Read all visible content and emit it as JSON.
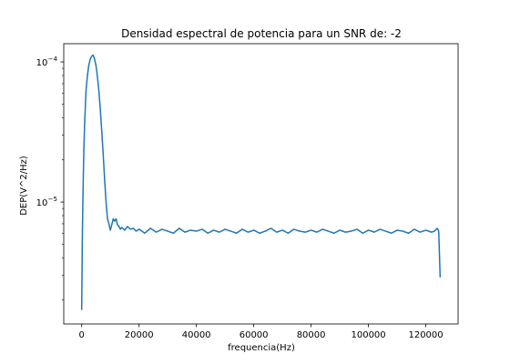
{
  "chart_data": {
    "type": "line",
    "title": "Densidad espectral de potencia para un SNR de: -2",
    "xlabel": "frequencia(Hz)",
    "ylabel": "DEP(V^2/Hz)",
    "xlim": [
      -6250,
      131250
    ],
    "ylim": [
      1.35e-06,
      0.000135
    ],
    "yscale": "log",
    "grid": false,
    "x_ticks": [
      {
        "value": 0,
        "label": "0"
      },
      {
        "value": 20000,
        "label": "20000"
      },
      {
        "value": 40000,
        "label": "40000"
      },
      {
        "value": 60000,
        "label": "60000"
      },
      {
        "value": 80000,
        "label": "80000"
      },
      {
        "value": 100000,
        "label": "100000"
      },
      {
        "value": 120000,
        "label": "120000"
      }
    ],
    "y_ticks": [
      {
        "value": 1e-05,
        "label": "10",
        "exp": "−5"
      },
      {
        "value": 0.0001,
        "label": "10",
        "exp": "−4"
      }
    ],
    "series": [
      {
        "color": "#1f77b4",
        "x": [
          0,
          250,
          500,
          750,
          1000,
          1500,
          2000,
          2500,
          3000,
          3500,
          4000,
          4500,
          5000,
          5500,
          6000,
          6500,
          7000,
          7500,
          8000,
          8500,
          9000,
          9500,
          10000,
          10500,
          11000,
          11500,
          12000,
          12500,
          13000,
          13500,
          14000,
          15000,
          16000,
          17000,
          18000,
          19000,
          20000,
          22000,
          24000,
          26000,
          28000,
          30000,
          32000,
          34000,
          36000,
          38000,
          40000,
          42000,
          44000,
          46000,
          48000,
          50000,
          52000,
          54000,
          56000,
          58000,
          60000,
          62000,
          64000,
          66000,
          68000,
          70000,
          72000,
          74000,
          76000,
          78000,
          80000,
          82000,
          84000,
          86000,
          88000,
          90000,
          92000,
          94000,
          96000,
          98000,
          100000,
          102000,
          104000,
          106000,
          108000,
          110000,
          112000,
          114000,
          116000,
          118000,
          120000,
          122000,
          123000,
          124000,
          124500,
          125000
        ],
        "y": [
          1.7e-06,
          6e-06,
          1.3e-05,
          2.3e-05,
          3.5e-05,
          6.2e-05,
          8e-05,
          9.5e-05,
          0.000105,
          0.00011,
          0.000112,
          0.000105,
          9.4e-05,
          7.8e-05,
          6.2e-05,
          4.6e-05,
          3.2e-05,
          2.2e-05,
          1.45e-05,
          1e-05,
          7.6e-06,
          7e-06,
          6.3e-06,
          6.9e-06,
          7.6e-06,
          7.3e-06,
          7.6e-06,
          6.9e-06,
          6.7e-06,
          6.4e-06,
          6.6e-06,
          6.3e-06,
          6.7e-06,
          6.4e-06,
          6.5e-06,
          6.2e-06,
          6.4e-06,
          6e-06,
          6.5e-06,
          6.1e-06,
          6.4e-06,
          6.2e-06,
          6e-06,
          6.5e-06,
          6.1e-06,
          6.3e-06,
          6.2e-06,
          6.4e-06,
          6e-06,
          6.3e-06,
          6.1e-06,
          6.4e-06,
          6.2e-06,
          6e-06,
          6.4e-06,
          6.1e-06,
          6.3e-06,
          6e-06,
          6.2e-06,
          6.5e-06,
          6.1e-06,
          6.3e-06,
          6e-06,
          6.4e-06,
          6.2e-06,
          6.1e-06,
          6.3e-06,
          6.1e-06,
          6.4e-06,
          6.2e-06,
          6e-06,
          6.3e-06,
          6.1e-06,
          6.2e-06,
          6.4e-06,
          6e-06,
          6.3e-06,
          6.1e-06,
          6.4e-06,
          6.2e-06,
          6e-06,
          6.3e-06,
          6.2e-06,
          6e-06,
          6.4e-06,
          6.1e-06,
          6.3e-06,
          6.1e-06,
          6.2e-06,
          6.5e-06,
          6.2e-06,
          2.9e-06
        ]
      }
    ]
  }
}
